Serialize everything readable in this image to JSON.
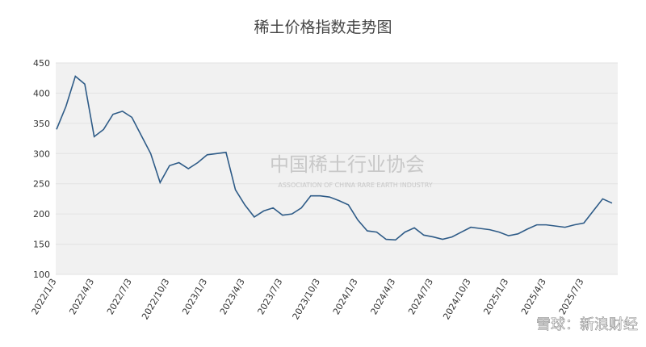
{
  "chart_data": {
    "type": "line",
    "title": "稀土价格指数走势图",
    "categories": [
      "2022/1/3",
      null,
      null,
      null,
      "2022/4/3",
      null,
      null,
      null,
      "2022/7/3",
      null,
      null,
      null,
      "2022/10/3",
      null,
      null,
      null,
      "2023/1/3",
      null,
      null,
      null,
      "2023/4/3",
      null,
      null,
      null,
      "2023/7/3",
      null,
      null,
      null,
      "2023/10/3",
      null,
      null,
      null,
      "2024/1/3",
      null,
      null,
      null,
      "2024/4/3",
      null,
      null,
      null,
      "2024/7/3",
      null,
      null,
      null,
      "2024/10/3",
      null,
      null,
      null,
      "2025/1/3",
      null,
      null,
      null,
      "2025/4/3",
      null,
      null,
      null,
      "2025/7/3",
      null,
      null,
      null
    ],
    "series": [
      {
        "name": "稀土价格指数",
        "color": "#2e5b87",
        "values": [
          340,
          378,
          428,
          415,
          328,
          340,
          365,
          370,
          360,
          330,
          300,
          252,
          280,
          285,
          275,
          285,
          298,
          300,
          302,
          240,
          215,
          195,
          205,
          210,
          198,
          200,
          210,
          230,
          230,
          228,
          222,
          215,
          190,
          172,
          170,
          158,
          157,
          170,
          177,
          165,
          162,
          158,
          162,
          170,
          178,
          176,
          174,
          170,
          164,
          167,
          175,
          182,
          182,
          180,
          178,
          182,
          185,
          205,
          225,
          218
        ]
      }
    ],
    "ylim": [
      100,
      450
    ],
    "yticks": [
      100,
      150,
      200,
      250,
      300,
      350,
      400,
      450
    ],
    "grid": true,
    "watermark_cn": "中国稀土行业协会",
    "watermark_en": "ASSOCIATION OF CHINA RARE EARTH INDUSTRY",
    "source": "雪球：新浪财经"
  }
}
